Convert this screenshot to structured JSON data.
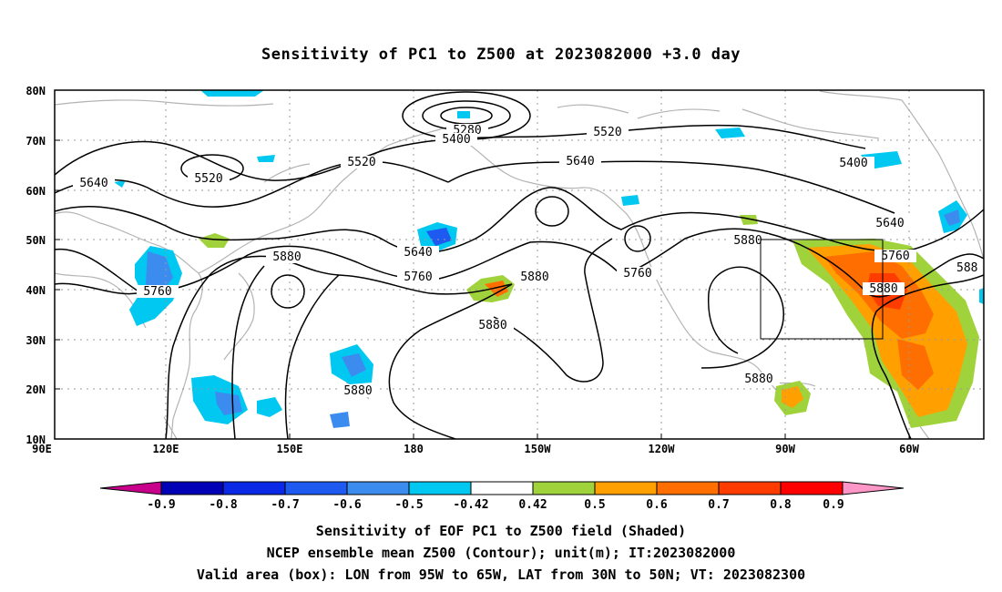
{
  "title": "Sensitivity of PC1 to Z500 at 2023082000 +3.0 day",
  "map": {
    "lat_labels": [
      "80N",
      "70N",
      "60N",
      "50N",
      "40N",
      "30N",
      "20N",
      "10N"
    ],
    "lon_labels": [
      "90E",
      "120E",
      "150E",
      "180",
      "150W",
      "120W",
      "90W",
      "60W"
    ],
    "contour_labels": [
      "5280",
      "5400",
      "5520",
      "5520",
      "5640",
      "5400",
      "5520",
      "5640",
      "5640",
      "5640",
      "5760",
      "5760",
      "5760",
      "5760",
      "5880",
      "5880",
      "5880",
      "5880",
      "5880",
      "5880",
      "5880",
      "588"
    ],
    "colors": {
      "land": "#b4b4b4",
      "contour": "#000000",
      "grid": "#9a9a9a"
    }
  },
  "colorbar": {
    "labels": [
      "-0.9",
      "-0.8",
      "-0.7",
      "-0.6",
      "-0.5",
      "-0.42",
      "0.42",
      "0.5",
      "0.6",
      "0.7",
      "0.8",
      "0.9"
    ],
    "colors": [
      "#c8008c",
      "#0000b4",
      "#0a28e6",
      "#1e5af0",
      "#3c8cf0",
      "#00c8f0",
      "#ffffff",
      "#a0d23c",
      "#ffa000",
      "#ff6e00",
      "#ff3c00",
      "#ff0000",
      "#ff96c8"
    ]
  },
  "caption": {
    "line1": "Sensitivity of EOF PC1 to Z500 field (Shaded)",
    "line2": "NCEP ensemble mean Z500 (Contour); unit(m); IT:2023082000",
    "line3": "Valid area (box): LON from 95W to 65W, LAT from 30N to 50N; VT: 2023082300"
  }
}
